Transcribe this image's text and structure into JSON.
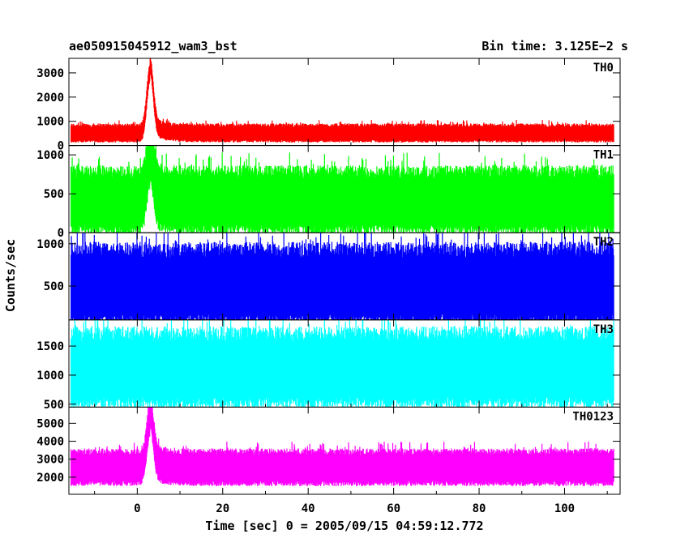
{
  "chart_data": {
    "type": "line",
    "title": "ae050915045912_wam3_bst",
    "subtitle": "Bin time: 3.125E−2 s",
    "xlabel": "Time [sec] 0 = 2005/09/15 04:59:12.772",
    "ylabel": "Counts/sec",
    "xlim": [
      -16,
      113
    ],
    "x_ticks": [
      0,
      20,
      40,
      60,
      80,
      100
    ],
    "data_x_range": [
      -15.5,
      111.5
    ],
    "bin_time": 0.03125,
    "grid": false,
    "legend": "none",
    "series": [
      {
        "name": "TH0",
        "color": "#ff0000",
        "ylim": [
          0,
          3600
        ],
        "y_ticks": [
          0,
          1000,
          2000,
          3000
        ],
        "baseline": 500,
        "noise_low": 200,
        "noise_high": 950,
        "peak_time": 3.0,
        "peak_value": 3500
      },
      {
        "name": "TH1",
        "color": "#00ff00",
        "ylim": [
          0,
          1120
        ],
        "y_ticks": [
          0,
          500,
          1000
        ],
        "baseline": 400,
        "noise_low": 150,
        "noise_high": 1000,
        "peak_time": 3.0,
        "peak_value": 1100
      },
      {
        "name": "TH2",
        "color": "#0000ff",
        "ylim": [
          100,
          1130
        ],
        "y_ticks": [
          500,
          1000
        ],
        "baseline": 500,
        "noise_low": 150,
        "noise_high": 1100,
        "peak_time": null,
        "peak_value": null
      },
      {
        "name": "TH3",
        "color": "#00ffff",
        "ylim": [
          450,
          1950
        ],
        "y_ticks": [
          500,
          1000,
          1500
        ],
        "baseline": 1100,
        "noise_low": 500,
        "noise_high": 1850,
        "peak_time": null,
        "peak_value": null
      },
      {
        "name": "TH0123",
        "color": "#ff00ff",
        "ylim": [
          1050,
          5900
        ],
        "y_ticks": [
          2000,
          3000,
          4000,
          5000
        ],
        "baseline": 2500,
        "noise_low": 1400,
        "noise_high": 3400,
        "peak_time": 3.0,
        "peak_value": 5800
      }
    ]
  }
}
